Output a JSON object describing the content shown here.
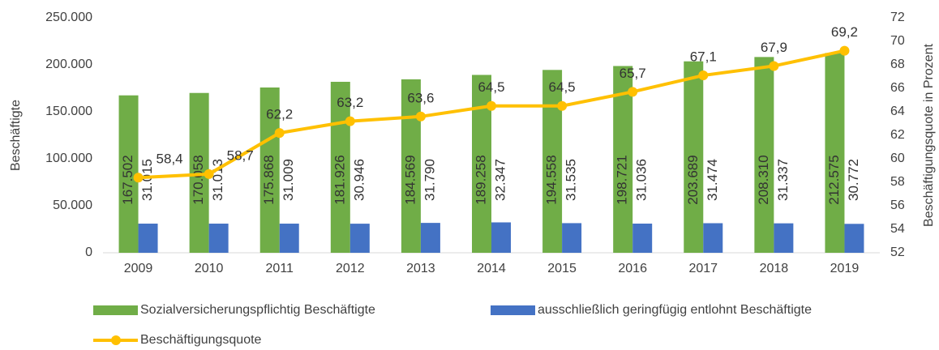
{
  "chart_data": {
    "type": "bar",
    "categories": [
      "2009",
      "2010",
      "2011",
      "2012",
      "2013",
      "2014",
      "2015",
      "2016",
      "2017",
      "2018",
      "2019"
    ],
    "series": [
      {
        "name": "Sozialversicherungspflichtig Beschäftigte",
        "color": "#70ad47",
        "type": "bar",
        "values": [
          167502,
          170058,
          175868,
          181926,
          184569,
          189258,
          194558,
          198721,
          203689,
          208310,
          212575
        ],
        "value_labels": [
          "167.502",
          "170.058",
          "175.868",
          "181.926",
          "184.569",
          "189.258",
          "194.558",
          "198.721",
          "203.689",
          "208.310",
          "212.575"
        ]
      },
      {
        "name": "ausschließlich geringfügig entlohnt Beschäftigte",
        "color": "#4472c4",
        "type": "bar",
        "values": [
          31015,
          31013,
          31009,
          30946,
          31790,
          32347,
          31535,
          31036,
          31474,
          31337,
          30772
        ],
        "value_labels": [
          "31.015",
          "31.013",
          "31.009",
          "30.946",
          "31.790",
          "32.347",
          "31.535",
          "31.036",
          "31.474",
          "31.337",
          "30.772"
        ]
      },
      {
        "name": "Beschäftigungsquote",
        "color": "#ffc000",
        "type": "line",
        "axis": "y2",
        "values": [
          58.4,
          58.7,
          62.2,
          63.2,
          63.6,
          64.5,
          64.5,
          65.7,
          67.1,
          67.9,
          69.2
        ],
        "value_labels": [
          "58,4",
          "58,7",
          "62,2",
          "63,2",
          "63,6",
          "64,5",
          "64,5",
          "65,7",
          "67,1",
          "67,9",
          "69,2"
        ]
      }
    ],
    "y_label": "Beschäftigte",
    "y2_label": "Beschäftigungsquote in Prozent",
    "ylim": [
      0,
      250000
    ],
    "yticks": [
      0,
      {
        "value": 50000,
        "label": "50.000"
      },
      {
        "value": 100000,
        "label": "100.000"
      },
      {
        "value": 150000,
        "label": "150.000"
      },
      {
        "value": 200000,
        "label": "200.000"
      },
      {
        "value": 250000,
        "label": "250.000"
      }
    ],
    "y2lim": [
      52,
      72
    ],
    "y2ticks": [
      52,
      54,
      56,
      58,
      60,
      62,
      64,
      66,
      68,
      70,
      72
    ],
    "legend": "bottom",
    "grid": false
  }
}
